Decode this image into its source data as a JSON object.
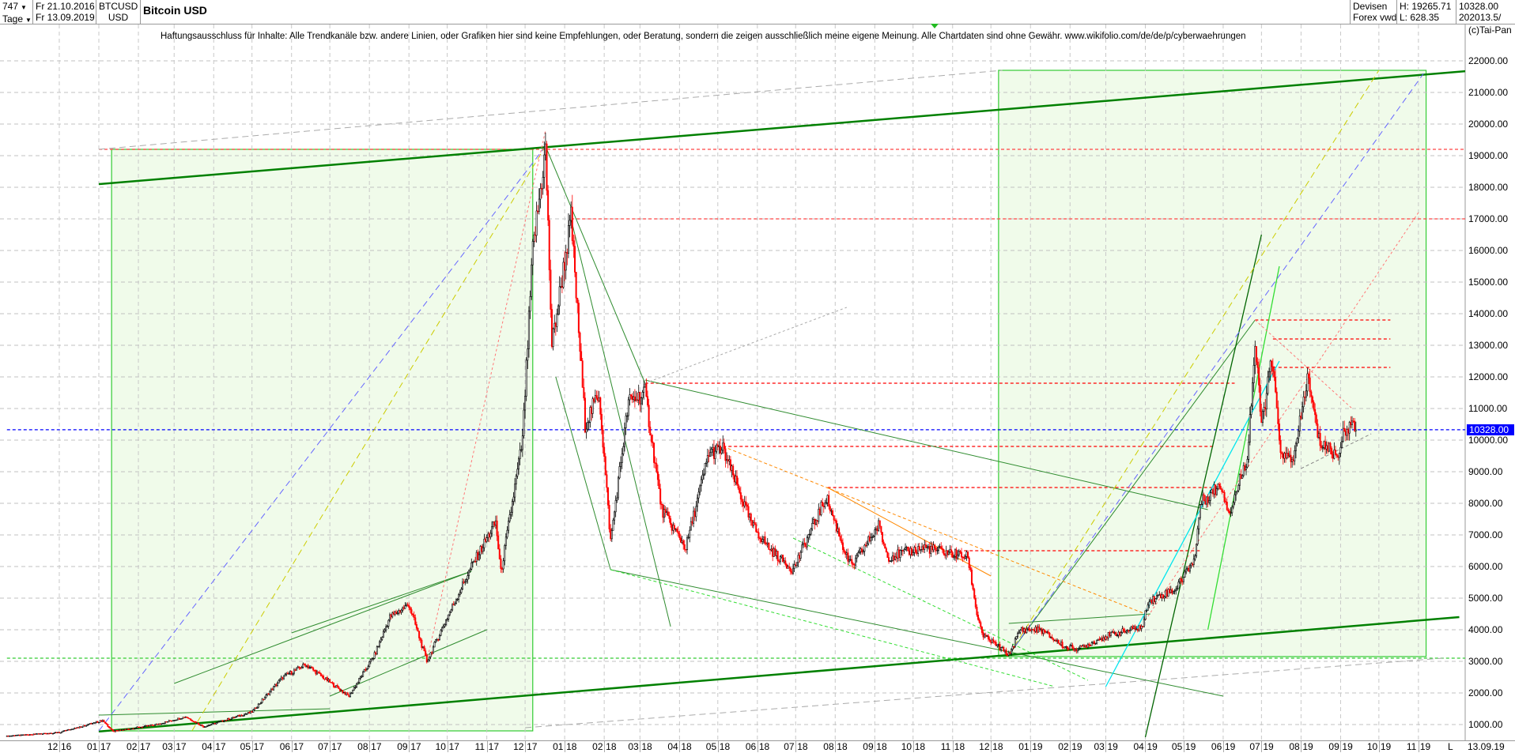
{
  "header": {
    "bars_count": "747",
    "period": "Tage",
    "date_from": "Fr 21.10.2016",
    "date_to": "Fr 13.09.2019",
    "symbol": "BTCUSD",
    "currency": "USD",
    "title": "Bitcoin USD",
    "exchange_1": "Devisen",
    "exchange_2": "Forex vwd",
    "high": "H: 19265.71",
    "low": "L: 628.35",
    "last": "10328.00",
    "volume": "202013.5/"
  },
  "disclaimer": "Haftungsausschluss für Inhalte: Alle Trendkanäle bzw. andere Linien, oder Grafiken hier sind keine Empfehlungen, oder Beratung, sondern die zeigen ausschließlich meine eigene Meinung. Alle Chartdaten sind ohne Gewähr.  www.wikifolio.com/de/de/p/cyberwaehrungen",
  "copyright": "(c)Tai-Pan",
  "bottom_axis": {
    "mode": "L",
    "last_date": "13.09.19"
  },
  "colors": {
    "up_candle": "#000000",
    "down_candle": "#ff0000",
    "box_fill": "#f0fbea",
    "box_border": "#33cc33",
    "channel": "#008000",
    "current_price": "#0000ff"
  },
  "chart_data": {
    "type": "candlestick",
    "title": "Bitcoin USD",
    "ylim": [
      500,
      22600
    ],
    "grid": true,
    "y_ticks": [
      "1000.00",
      "2000.00",
      "3000.00",
      "4000.00",
      "5000.00",
      "6000.00",
      "7000.00",
      "8000.00",
      "9000.00",
      "10000.00",
      "11000.00",
      "12000.00",
      "13000.00",
      "14000.00",
      "15000.00",
      "16000.00",
      "17000.00",
      "18000.00",
      "19000.00",
      "20000.00",
      "21000.00",
      "22000.00"
    ],
    "x_ticks": [
      "12 16",
      "01 17",
      "02 17",
      "03 17",
      "04 17",
      "05 17",
      "06 17",
      "07 17",
      "08 17",
      "09 17",
      "10 17",
      "11 17",
      "12 17",
      "01 18",
      "02 18",
      "03 18",
      "04 18",
      "05 18",
      "06 18",
      "07 18",
      "08 18",
      "09 18",
      "10 18",
      "11 18",
      "12 18",
      "01 19",
      "02 19",
      "03 19",
      "04 19",
      "05 19",
      "06 19",
      "07 19",
      "08 19",
      "09 19",
      "10 19",
      "11 19"
    ],
    "x_tick_dates": [
      "2016-12-01",
      "2017-01-01",
      "2017-02-01",
      "2017-03-01",
      "2017-04-01",
      "2017-05-01",
      "2017-06-01",
      "2017-07-01",
      "2017-08-01",
      "2017-09-01",
      "2017-10-01",
      "2017-11-01",
      "2017-12-01",
      "2018-01-01",
      "2018-02-01",
      "2018-03-01",
      "2018-04-01",
      "2018-05-01",
      "2018-06-01",
      "2018-07-01",
      "2018-08-01",
      "2018-09-01",
      "2018-10-01",
      "2018-11-01",
      "2018-12-01",
      "2019-01-01",
      "2019-02-01",
      "2019-03-01",
      "2019-04-01",
      "2019-05-01",
      "2019-06-01",
      "2019-07-01",
      "2019-08-01",
      "2019-09-01",
      "2019-10-01",
      "2019-11-01"
    ],
    "highlight_range": [
      "2018-09-01",
      "2019-12-01"
    ],
    "current_price": 10328.0,
    "closes": [
      [
        "2016-10-21",
        630
      ],
      [
        "2016-12-01",
        750
      ],
      [
        "2017-01-04",
        1130
      ],
      [
        "2017-01-12",
        780
      ],
      [
        "2017-02-15",
        1000
      ],
      [
        "2017-03-10",
        1250
      ],
      [
        "2017-03-24",
        930
      ],
      [
        "2017-05-01",
        1400
      ],
      [
        "2017-05-25",
        2500
      ],
      [
        "2017-06-12",
        2900
      ],
      [
        "2017-07-16",
        1900
      ],
      [
        "2017-08-05",
        3200
      ],
      [
        "2017-08-17",
        4400
      ],
      [
        "2017-09-01",
        4800
      ],
      [
        "2017-09-15",
        3000
      ],
      [
        "2017-09-30",
        4300
      ],
      [
        "2017-10-20",
        6000
      ],
      [
        "2017-11-08",
        7400
      ],
      [
        "2017-11-12",
        5800
      ],
      [
        "2017-11-29",
        10000
      ],
      [
        "2017-12-07",
        16000
      ],
      [
        "2017-12-17",
        19200
      ],
      [
        "2017-12-22",
        13000
      ],
      [
        "2018-01-06",
        17000
      ],
      [
        "2018-01-17",
        10500
      ],
      [
        "2018-01-28",
        11500
      ],
      [
        "2018-02-06",
        6800
      ],
      [
        "2018-02-20",
        11200
      ],
      [
        "2018-03-05",
        11500
      ],
      [
        "2018-03-18",
        7800
      ],
      [
        "2018-04-06",
        6600
      ],
      [
        "2018-04-24",
        9600
      ],
      [
        "2018-05-05",
        9700
      ],
      [
        "2018-05-28",
        7300
      ],
      [
        "2018-06-12",
        6500
      ],
      [
        "2018-06-29",
        5900
      ],
      [
        "2018-07-08",
        6700
      ],
      [
        "2018-07-25",
        8200
      ],
      [
        "2018-08-10",
        6300
      ],
      [
        "2018-08-14",
        6000
      ],
      [
        "2018-09-04",
        7300
      ],
      [
        "2018-09-11",
        6300
      ],
      [
        "2018-10-10",
        6600
      ],
      [
        "2018-11-13",
        6300
      ],
      [
        "2018-11-20",
        4500
      ],
      [
        "2018-11-25",
        3800
      ],
      [
        "2018-12-06",
        3500
      ],
      [
        "2018-12-15",
        3200
      ],
      [
        "2018-12-24",
        4000
      ],
      [
        "2019-01-09",
        4000
      ],
      [
        "2019-01-28",
        3450
      ],
      [
        "2019-02-08",
        3400
      ],
      [
        "2019-03-01",
        3800
      ],
      [
        "2019-03-30",
        4100
      ],
      [
        "2019-04-03",
        4900
      ],
      [
        "2019-04-25",
        5300
      ],
      [
        "2019-05-10",
        6300
      ],
      [
        "2019-05-14",
        8000
      ],
      [
        "2019-05-30",
        8600
      ],
      [
        "2019-06-06",
        7700
      ],
      [
        "2019-06-20",
        9500
      ],
      [
        "2019-06-26",
        13000
      ],
      [
        "2019-07-01",
        10500
      ],
      [
        "2019-07-09",
        12500
      ],
      [
        "2019-07-17",
        9400
      ],
      [
        "2019-07-27",
        9500
      ],
      [
        "2019-08-06",
        12000
      ],
      [
        "2019-08-15",
        10000
      ],
      [
        "2019-08-29",
        9500
      ],
      [
        "2019-09-06",
        10500
      ],
      [
        "2019-09-13",
        10328
      ]
    ],
    "boxes": [
      {
        "from": [
          "2017-01-11",
          19200
        ],
        "to": [
          "2017-12-07",
          800
        ]
      },
      {
        "from": [
          "2018-12-07",
          21700
        ],
        "to": [
          "2019-11-07",
          3150
        ]
      }
    ],
    "trendlines": [
      {
        "color": "#008000",
        "width": 2.5,
        "dash": "",
        "points": [
          [
            "2017-01-01",
            18100
          ],
          [
            "2020-01-15",
            21800
          ]
        ]
      },
      {
        "color": "#008000",
        "width": 2.5,
        "dash": "",
        "points": [
          [
            "2017-01-01",
            780
          ],
          [
            "2019-12-03",
            4400
          ]
        ]
      },
      {
        "color": "#2e8b2e",
        "width": 1,
        "dash": "",
        "points": [
          [
            "2017-12-17",
            19300
          ],
          [
            "2018-03-05",
            11800
          ]
        ]
      },
      {
        "color": "#2e8b2e",
        "width": 1,
        "dash": "",
        "points": [
          [
            "2018-01-06",
            17000
          ],
          [
            "2018-03-25",
            4100
          ]
        ]
      },
      {
        "color": "#2e8b2e",
        "width": 1,
        "dash": "",
        "points": [
          [
            "2017-12-25",
            12000
          ],
          [
            "2018-02-06",
            5900
          ]
        ]
      },
      {
        "color": "#2e8b2e",
        "width": 1,
        "dash": "",
        "points": [
          [
            "2018-03-05",
            11900
          ],
          [
            "2019-05-20",
            7800
          ]
        ]
      },
      {
        "color": "#2e8b2e",
        "width": 1,
        "dash": "",
        "points": [
          [
            "2018-02-06",
            5900
          ],
          [
            "2019-06-01",
            1900
          ]
        ]
      },
      {
        "color": "#2e8b2e",
        "width": 1,
        "dash": "",
        "points": [
          [
            "2017-03-01",
            2300
          ],
          [
            "2017-10-20",
            5850
          ]
        ]
      },
      {
        "color": "#2e8b2e",
        "width": 1,
        "dash": "",
        "points": [
          [
            "2017-06-01",
            3900
          ],
          [
            "2017-10-20",
            5850
          ]
        ]
      },
      {
        "color": "#2e8b2e",
        "width": 1,
        "dash": "",
        "points": [
          [
            "2017-07-01",
            1900
          ],
          [
            "2017-11-01",
            4000
          ]
        ]
      },
      {
        "color": "#2e8b2e",
        "width": 1,
        "dash": "",
        "points": [
          [
            "2017-01-01",
            1300
          ],
          [
            "2017-07-01",
            1500
          ]
        ]
      },
      {
        "color": "#2e8b2e",
        "width": 1,
        "dash": "",
        "points": [
          [
            "2018-12-15",
            4200
          ],
          [
            "2019-04-05",
            4500
          ]
        ]
      },
      {
        "color": "#2e8b2e",
        "width": 1,
        "dash": "",
        "points": [
          [
            "2018-12-15",
            3200
          ],
          [
            "2019-06-26",
            13800
          ]
        ]
      },
      {
        "color": "#006400",
        "width": 1.3,
        "dash": "",
        "points": [
          [
            "2019-04-01",
            600
          ],
          [
            "2019-07-01",
            16500
          ]
        ]
      },
      {
        "color": "#33dd33",
        "width": 1.3,
        "dash": "",
        "points": [
          [
            "2019-05-20",
            4000
          ],
          [
            "2019-07-15",
            15500
          ]
        ]
      },
      {
        "color": "#00e5ee",
        "width": 1.3,
        "dash": "",
        "points": [
          [
            "2019-03-01",
            2200
          ],
          [
            "2019-07-15",
            12500
          ]
        ]
      },
      {
        "color": "#6666ff",
        "width": 1,
        "dash": "8 5",
        "points": [
          [
            "2017-01-01",
            800
          ],
          [
            "2017-12-17",
            19300
          ]
        ]
      },
      {
        "color": "#cccc00",
        "width": 1,
        "dash": "8 5",
        "points": [
          [
            "2017-03-15",
            800
          ],
          [
            "2017-12-17",
            19300
          ]
        ]
      },
      {
        "color": "#6666ff",
        "width": 1,
        "dash": "8 5",
        "points": [
          [
            "2018-12-15",
            3200
          ],
          [
            "2019-11-05",
            21600
          ]
        ]
      },
      {
        "color": "#cccc00",
        "width": 1,
        "dash": "8 5",
        "points": [
          [
            "2018-12-15",
            3200
          ],
          [
            "2019-10-01",
            21700
          ]
        ]
      },
      {
        "color": "#aaaaaa",
        "width": 1,
        "dash": "8 5",
        "points": [
          [
            "2017-01-01",
            19200
          ],
          [
            "2018-12-10",
            21700
          ]
        ]
      },
      {
        "color": "#aaaaaa",
        "width": 1,
        "dash": "8 5",
        "points": [
          [
            "2017-12-01",
            900
          ],
          [
            "2019-11-20",
            3100
          ]
        ]
      },
      {
        "color": "#aaaaaa",
        "width": 1,
        "dash": "3 3",
        "points": [
          [
            "2018-03-05",
            11800
          ],
          [
            "2018-08-10",
            14200
          ]
        ]
      },
      {
        "color": "#ff8800",
        "width": 1,
        "dash": "4 3",
        "points": [
          [
            "2018-05-05",
            9800
          ],
          [
            "2019-04-01",
            4500
          ]
        ]
      },
      {
        "color": "#ff8800",
        "width": 1,
        "dash": "",
        "points": [
          [
            "2018-07-26",
            8500
          ],
          [
            "2018-12-01",
            5700
          ]
        ]
      },
      {
        "color": "#33dd33",
        "width": 1,
        "dash": "4 3",
        "points": [
          [
            "2018-02-06",
            5900
          ],
          [
            "2019-01-20",
            2200
          ]
        ]
      },
      {
        "color": "#33dd33",
        "width": 1,
        "dash": "4 3",
        "points": [
          [
            "2018-06-29",
            6900
          ],
          [
            "2019-02-15",
            2400
          ]
        ]
      },
      {
        "color": "#ff7777",
        "width": 1,
        "dash": "3 3",
        "points": [
          [
            "2017-09-15",
            3000
          ],
          [
            "2017-12-17",
            19800
          ]
        ]
      },
      {
        "color": "#ff7777",
        "width": 1,
        "dash": "3 3",
        "points": [
          [
            "2019-06-26",
            13800
          ],
          [
            "2019-09-10",
            11000
          ]
        ]
      },
      {
        "color": "#ff7777",
        "width": 1,
        "dash": "3 3",
        "points": [
          [
            "2019-04-01",
            4300
          ],
          [
            "2019-11-01",
            17200
          ]
        ]
      },
      {
        "color": "#888888",
        "width": 1,
        "dash": "4 3",
        "points": [
          [
            "2019-08-01",
            9100
          ],
          [
            "2019-09-25",
            10200
          ]
        ]
      }
    ],
    "horizontal_levels": [
      {
        "price": 19200,
        "from": "2017-01-01",
        "to": "2020-02-01",
        "color": "#ff4444"
      },
      {
        "price": 17000,
        "from": "2018-01-06",
        "to": "2020-02-01",
        "color": "#ff4444"
      },
      {
        "price": 11800,
        "from": "2018-03-05",
        "to": "2019-06-10",
        "color": "#ff0000"
      },
      {
        "price": 9800,
        "from": "2018-05-05",
        "to": "2019-05-25",
        "color": "#ff0000"
      },
      {
        "price": 8500,
        "from": "2018-07-26",
        "to": "2019-05-25",
        "color": "#ff0000"
      },
      {
        "price": 6500,
        "from": "2018-11-10",
        "to": "2019-05-14",
        "color": "#ff0000"
      },
      {
        "price": 13800,
        "from": "2019-06-26",
        "to": "2019-10-10",
        "color": "#ff0000"
      },
      {
        "price": 13200,
        "from": "2019-07-10",
        "to": "2019-10-10",
        "color": "#ff0000"
      },
      {
        "price": 12300,
        "from": "2019-07-10",
        "to": "2019-10-10",
        "color": "#ff0000"
      },
      {
        "price": 3100,
        "from": "2016-10-21",
        "to": "2020-02-01",
        "color": "#33cc33"
      },
      {
        "price": 10328,
        "from": "2016-10-21",
        "to": "2020-02-01",
        "color": "#0000ff"
      }
    ]
  }
}
